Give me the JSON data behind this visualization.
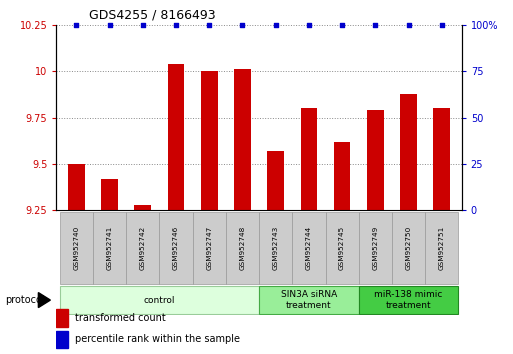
{
  "title": "GDS4255 / 8166493",
  "samples": [
    "GSM952740",
    "GSM952741",
    "GSM952742",
    "GSM952746",
    "GSM952747",
    "GSM952748",
    "GSM952743",
    "GSM952744",
    "GSM952745",
    "GSM952749",
    "GSM952750",
    "GSM952751"
  ],
  "bar_values": [
    9.5,
    9.42,
    9.28,
    10.04,
    10.0,
    10.01,
    9.57,
    9.8,
    9.62,
    9.79,
    9.88,
    9.8
  ],
  "percentile_values": [
    100,
    100,
    100,
    100,
    100,
    100,
    100,
    100,
    100,
    100,
    100,
    100
  ],
  "bar_color": "#cc0000",
  "dot_color": "#0000cc",
  "ylim_left": [
    9.25,
    10.25
  ],
  "ylim_right": [
    0,
    100
  ],
  "yticks_left": [
    9.25,
    9.5,
    9.75,
    10.0,
    10.25
  ],
  "yticks_right": [
    0,
    25,
    50,
    75,
    100
  ],
  "ytick_labels_left": [
    "9.25",
    "9.5",
    "9.75",
    "10",
    "10.25"
  ],
  "ytick_labels_right": [
    "0",
    "25",
    "50",
    "75",
    "100%"
  ],
  "group_ranges": [
    {
      "start": 0,
      "end": 5,
      "label": "control",
      "fc": "#ddffdd",
      "ec": "#99cc99"
    },
    {
      "start": 6,
      "end": 8,
      "label": "SIN3A siRNA\ntreatment",
      "fc": "#99ee99",
      "ec": "#44aa44"
    },
    {
      "start": 9,
      "end": 11,
      "label": "miR-138 mimic\ntreatment",
      "fc": "#44cc44",
      "ec": "#228822"
    }
  ],
  "legend_bar_label": "transformed count",
  "legend_dot_label": "percentile rank within the sample",
  "protocol_label": "protocol",
  "background_color": "#ffffff",
  "grid_color": "#888888",
  "tick_color_left": "#cc0000",
  "tick_color_right": "#0000cc",
  "sample_box_color": "#cccccc",
  "sample_box_edge": "#999999"
}
